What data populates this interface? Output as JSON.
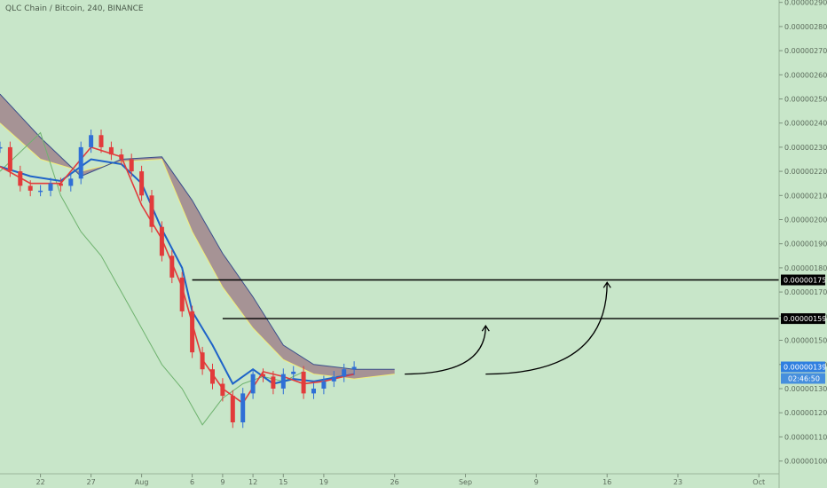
{
  "header": {
    "title": "QLC Chain / Bitcoin, 240, BINANCE"
  },
  "colors": {
    "background": "#c8e6c9",
    "candle_up": "#2f6fd6",
    "candle_down": "#e23b3b",
    "tenkan": "#e23b3b",
    "kijun": "#1e63c8",
    "lagging": "#6fb36f",
    "span_a": "#f2ee7a",
    "span_b": "#3b4f8c",
    "cloud": "#8a4f6a",
    "level_line": "#000000",
    "price_badge": "#2f7fe0"
  },
  "chart_data": {
    "type": "line",
    "symbol": "QLC Chain / Bitcoin",
    "interval": "240",
    "exchange": "BINANCE",
    "x_axis": {
      "type": "date",
      "range": [
        "2018-07-18",
        "2018-10-03"
      ],
      "tick_labels": [
        "22",
        "27",
        "Aug",
        "6",
        "9",
        "12",
        "15",
        "19",
        "26",
        "Sep",
        "9",
        "16",
        "23",
        "Oct"
      ],
      "tick_dates": [
        "2018-07-22",
        "2018-07-27",
        "2018-08-01",
        "2018-08-06",
        "2018-08-09",
        "2018-08-12",
        "2018-08-15",
        "2018-08-19",
        "2018-08-26",
        "2018-09-02",
        "2018-09-09",
        "2018-09-16",
        "2018-09-23",
        "2018-10-01"
      ]
    },
    "y_axis": {
      "range": [
        9.8e-07,
        2.91e-06
      ],
      "position": "right",
      "tick_labels": [
        "0.00000100",
        "0.00000110",
        "0.00000120",
        "0.00000130",
        "0.00000140",
        "0.00000150",
        "0.00000160",
        "0.00000170",
        "0.00000180",
        "0.00000190",
        "0.00000200",
        "0.00000210",
        "0.00000220",
        "0.00000230",
        "0.00000240",
        "0.00000250",
        "0.00000260",
        "0.00000270",
        "0.00000280",
        "0.00000290"
      ],
      "tick_values": [
        1e-06,
        1.1e-06,
        1.2e-06,
        1.3e-06,
        1.4e-06,
        1.5e-06,
        1.6e-06,
        1.7e-06,
        1.8e-06,
        1.9e-06,
        2e-06,
        2.1e-06,
        2.2e-06,
        2.3e-06,
        2.4e-06,
        2.5e-06,
        2.6e-06,
        2.7e-06,
        2.8e-06,
        2.9e-06
      ]
    },
    "grid": false,
    "price_series": {
      "x": [
        "2018-07-18",
        "2018-07-19",
        "2018-07-20",
        "2018-07-21",
        "2018-07-22",
        "2018-07-23",
        "2018-07-24",
        "2018-07-25",
        "2018-07-26",
        "2018-07-27",
        "2018-07-28",
        "2018-07-29",
        "2018-07-30",
        "2018-07-31",
        "2018-08-01",
        "2018-08-02",
        "2018-08-03",
        "2018-08-04",
        "2018-08-05",
        "2018-08-06",
        "2018-08-07",
        "2018-08-08",
        "2018-08-09",
        "2018-08-10",
        "2018-08-11",
        "2018-08-12",
        "2018-08-13",
        "2018-08-14",
        "2018-08-15",
        "2018-08-16",
        "2018-08-17",
        "2018-08-18",
        "2018-08-19",
        "2018-08-20",
        "2018-08-21",
        "2018-08-22"
      ],
      "close": [
        2.3e-06,
        2.2e-06,
        2.14e-06,
        2.12e-06,
        2.12e-06,
        2.15e-06,
        2.14e-06,
        2.17e-06,
        2.3e-06,
        2.35e-06,
        2.3e-06,
        2.27e-06,
        2.25e-06,
        2.2e-06,
        2.1e-06,
        1.97e-06,
        1.85e-06,
        1.76e-06,
        1.62e-06,
        1.45e-06,
        1.38e-06,
        1.32e-06,
        1.27e-06,
        1.16e-06,
        1.28e-06,
        1.36e-06,
        1.35e-06,
        1.3e-06,
        1.36e-06,
        1.37e-06,
        1.28e-06,
        1.3e-06,
        1.33e-06,
        1.35e-06,
        1.38e-06,
        1.39e-06
      ]
    },
    "ichimoku": {
      "tenkan": {
        "x": [
          "2018-07-18",
          "2018-07-21",
          "2018-07-24",
          "2018-07-27",
          "2018-07-30",
          "2018-08-01",
          "2018-08-03",
          "2018-08-05",
          "2018-08-07",
          "2018-08-09",
          "2018-08-11",
          "2018-08-13",
          "2018-08-15",
          "2018-08-17",
          "2018-08-19",
          "2018-08-22"
        ],
        "y": [
          2.22e-06,
          2.15e-06,
          2.15e-06,
          2.3e-06,
          2.26e-06,
          2.06e-06,
          1.92e-06,
          1.72e-06,
          1.42e-06,
          1.3e-06,
          1.24e-06,
          1.37e-06,
          1.35e-06,
          1.32e-06,
          1.33e-06,
          1.36e-06
        ]
      },
      "kijun": {
        "x": [
          "2018-07-18",
          "2018-07-21",
          "2018-07-24",
          "2018-07-27",
          "2018-07-30",
          "2018-08-01",
          "2018-08-03",
          "2018-08-05",
          "2018-08-06",
          "2018-08-08",
          "2018-08-10",
          "2018-08-12",
          "2018-08-14",
          "2018-08-16",
          "2018-08-18",
          "2018-08-22"
        ],
        "y": [
          2.22e-06,
          2.18e-06,
          2.16e-06,
          2.25e-06,
          2.23e-06,
          2.15e-06,
          1.96e-06,
          1.8e-06,
          1.62e-06,
          1.48e-06,
          1.32e-06,
          1.38e-06,
          1.32e-06,
          1.34e-06,
          1.33e-06,
          1.36e-06
        ]
      },
      "lagging_span": {
        "x": [
          "2018-07-18",
          "2018-07-20",
          "2018-07-22",
          "2018-07-24",
          "2018-07-26",
          "2018-07-28",
          "2018-07-30",
          "2018-08-01",
          "2018-08-03",
          "2018-08-05",
          "2018-08-07",
          "2018-08-09",
          "2018-08-11",
          "2018-08-13",
          "2018-08-15",
          "2018-08-17"
        ],
        "y": [
          2.2e-06,
          2.28e-06,
          2.36e-06,
          2.1e-06,
          1.95e-06,
          1.85e-06,
          1.7e-06,
          1.55e-06,
          1.4e-06,
          1.3e-06,
          1.15e-06,
          1.26e-06,
          1.32e-06,
          1.35e-06,
          1.33e-06,
          1.37e-06
        ]
      },
      "senkou_a": {
        "x": [
          "2018-07-18",
          "2018-07-22",
          "2018-07-26",
          "2018-07-30",
          "2018-08-03",
          "2018-08-06",
          "2018-08-09",
          "2018-08-12",
          "2018-08-15",
          "2018-08-18",
          "2018-08-22",
          "2018-08-26"
        ],
        "y": [
          2.4e-06,
          2.25e-06,
          2.2e-06,
          2.24e-06,
          2.25e-06,
          1.95e-06,
          1.72e-06,
          1.55e-06,
          1.42e-06,
          1.36e-06,
          1.34e-06,
          1.36e-06
        ]
      },
      "senkou_b": {
        "x": [
          "2018-07-18",
          "2018-07-22",
          "2018-07-26",
          "2018-07-30",
          "2018-08-03",
          "2018-08-06",
          "2018-08-09",
          "2018-08-12",
          "2018-08-15",
          "2018-08-18",
          "2018-08-22",
          "2018-08-26"
        ],
        "y": [
          2.52e-06,
          2.34e-06,
          2.18e-06,
          2.25e-06,
          2.26e-06,
          2.08e-06,
          1.86e-06,
          1.68e-06,
          1.48e-06,
          1.4e-06,
          1.38e-06,
          1.38e-06
        ]
      }
    },
    "horizontal_levels": [
      {
        "price": 1.75e-06,
        "label": "0.00000175",
        "start": "2018-08-06"
      },
      {
        "price": 1.59e-06,
        "label": "0.00000159",
        "start": "2018-08-09"
      }
    ],
    "projection_arrows": [
      {
        "from_x": "2018-08-27",
        "from_y": 1.36e-06,
        "to_x": "2018-09-04",
        "to_y": 1.56e-06
      },
      {
        "from_x": "2018-09-04",
        "from_y": 1.36e-06,
        "to_x": "2018-09-16",
        "to_y": 1.74e-06
      }
    ],
    "current_price": {
      "value": 1.39e-06,
      "label": "0.00000139",
      "countdown": "02:46:50"
    }
  }
}
